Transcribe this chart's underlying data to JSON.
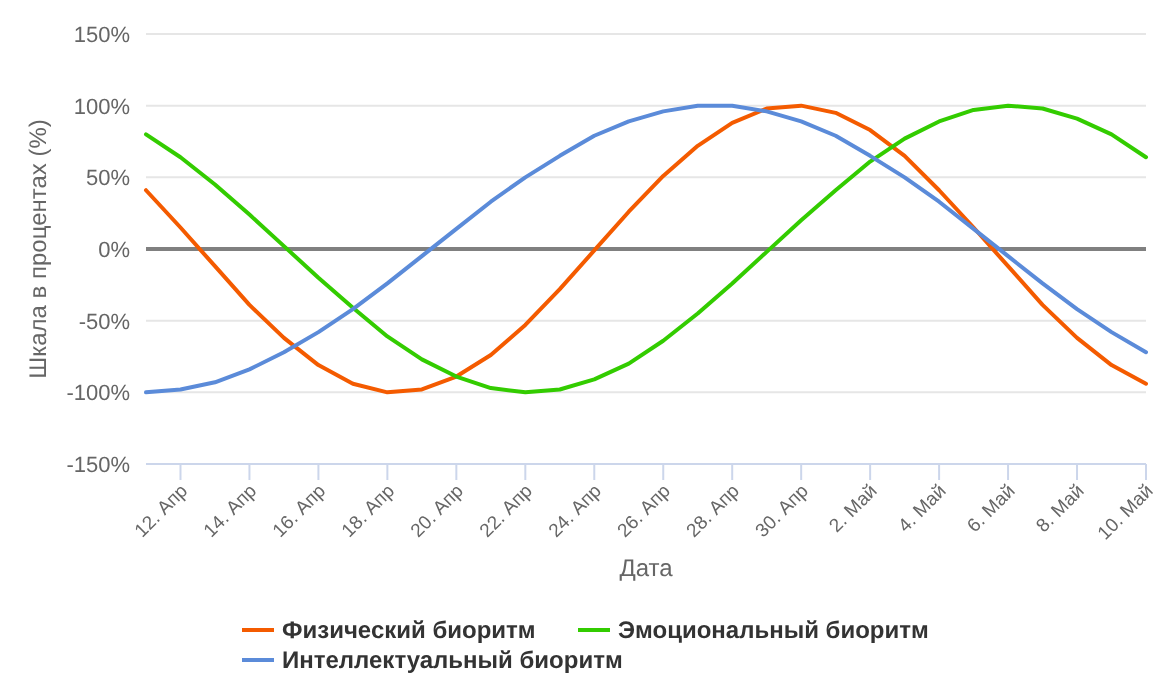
{
  "chart_data": {
    "type": "line",
    "xlabel": "Дата",
    "ylabel": "Шкала в процентах (%)",
    "x": [
      "--04-11",
      "--04-12",
      "--04-13",
      "--04-14",
      "--04-15",
      "--04-16",
      "--04-17",
      "--04-18",
      "--04-19",
      "--04-20",
      "--04-21",
      "--04-22",
      "--04-23",
      "--04-24",
      "--04-25",
      "--04-26",
      "--04-27",
      "--04-28",
      "--04-29",
      "--04-30",
      "--05-01",
      "--05-02",
      "--05-03",
      "--05-04",
      "--05-05",
      "--05-06",
      "--05-07",
      "--05-08",
      "--05-09",
      "--05-10"
    ],
    "series": [
      {
        "name": "Физический биоритм",
        "color": "#f45b00",
        "values": [
          41,
          15,
          -12,
          -39,
          -62,
          -81,
          -94,
          -100,
          -98,
          -89,
          -74,
          -53,
          -28,
          -1,
          26,
          51,
          72,
          88,
          98,
          100,
          95,
          83,
          65,
          41,
          15,
          -12,
          -39,
          -62,
          -81,
          -94
        ]
      },
      {
        "name": "Эмоциональный биоритм",
        "color": "#33cc00",
        "values": [
          80,
          64,
          45,
          24,
          2,
          -20,
          -41,
          -61,
          -77,
          -89,
          -97,
          -100,
          -98,
          -91,
          -80,
          -64,
          -45,
          -24,
          -2,
          20,
          41,
          61,
          77,
          89,
          97,
          100,
          98,
          91,
          80,
          64
        ]
      },
      {
        "name": "Интеллектуальный биоритм",
        "color": "#5b8bd9",
        "values": [
          -100,
          -98,
          -93,
          -84,
          -72,
          -58,
          -42,
          -24,
          -5,
          14,
          33,
          50,
          65,
          79,
          89,
          96,
          100,
          100,
          96,
          89,
          79,
          65,
          50,
          33,
          14,
          -5,
          -24,
          -42,
          -58,
          -72
        ]
      }
    ],
    "xlim": [
      "--04-11",
      "--05-10"
    ],
    "xticks": [
      {
        "value": "--04-12",
        "label": "12. Апр"
      },
      {
        "value": "--04-14",
        "label": "14. Апр"
      },
      {
        "value": "--04-16",
        "label": "16. Апр"
      },
      {
        "value": "--04-18",
        "label": "18. Апр"
      },
      {
        "value": "--04-20",
        "label": "20. Апр"
      },
      {
        "value": "--04-22",
        "label": "22. Апр"
      },
      {
        "value": "--04-24",
        "label": "24. Апр"
      },
      {
        "value": "--04-26",
        "label": "26. Апр"
      },
      {
        "value": "--04-28",
        "label": "28. Апр"
      },
      {
        "value": "--04-30",
        "label": "30. Апр"
      },
      {
        "value": "--05-02",
        "label": "2. Май"
      },
      {
        "value": "--05-04",
        "label": "4. Май"
      },
      {
        "value": "--05-06",
        "label": "6. Май"
      },
      {
        "value": "--05-08",
        "label": "8. Май"
      },
      {
        "value": "--05-10",
        "label": "10. Май"
      }
    ],
    "ylim": [
      -150,
      150
    ],
    "yticks": [
      {
        "value": -150,
        "label": "-150%"
      },
      {
        "value": -100,
        "label": "-100%"
      },
      {
        "value": -50,
        "label": "-50%"
      },
      {
        "value": 0,
        "label": "0%"
      },
      {
        "value": 50,
        "label": "50%"
      },
      {
        "value": 100,
        "label": "100%"
      },
      {
        "value": 150,
        "label": "150%"
      }
    ],
    "ref_lines": [
      {
        "axis": "y",
        "value": 0,
        "color": "#808080"
      }
    ],
    "grid": "y",
    "legend": "bottom",
    "marker": "none",
    "line_style": "solid"
  }
}
